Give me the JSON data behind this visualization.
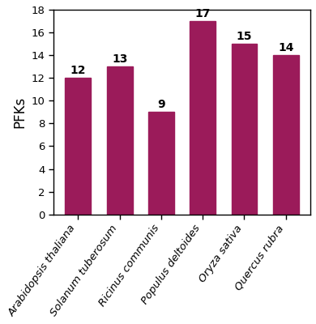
{
  "categories": [
    "Arabidopsis thaliana",
    "Solanum tuberosum",
    "Ricinus communis",
    "Populus deltoides",
    "Oryza sativa",
    "Quercus rubra"
  ],
  "values": [
    12,
    13,
    9,
    17,
    15,
    14
  ],
  "bar_color": "#9B1B5A",
  "ylabel": "PFKs",
  "ylim": [
    0,
    18
  ],
  "yticks": [
    0,
    2,
    4,
    6,
    8,
    10,
    12,
    14,
    16,
    18
  ],
  "label_fontsize": 12,
  "tick_fontsize": 9.5,
  "annotation_fontsize": 10,
  "bar_width": 0.62,
  "background_color": "#ffffff",
  "rotation": 55
}
